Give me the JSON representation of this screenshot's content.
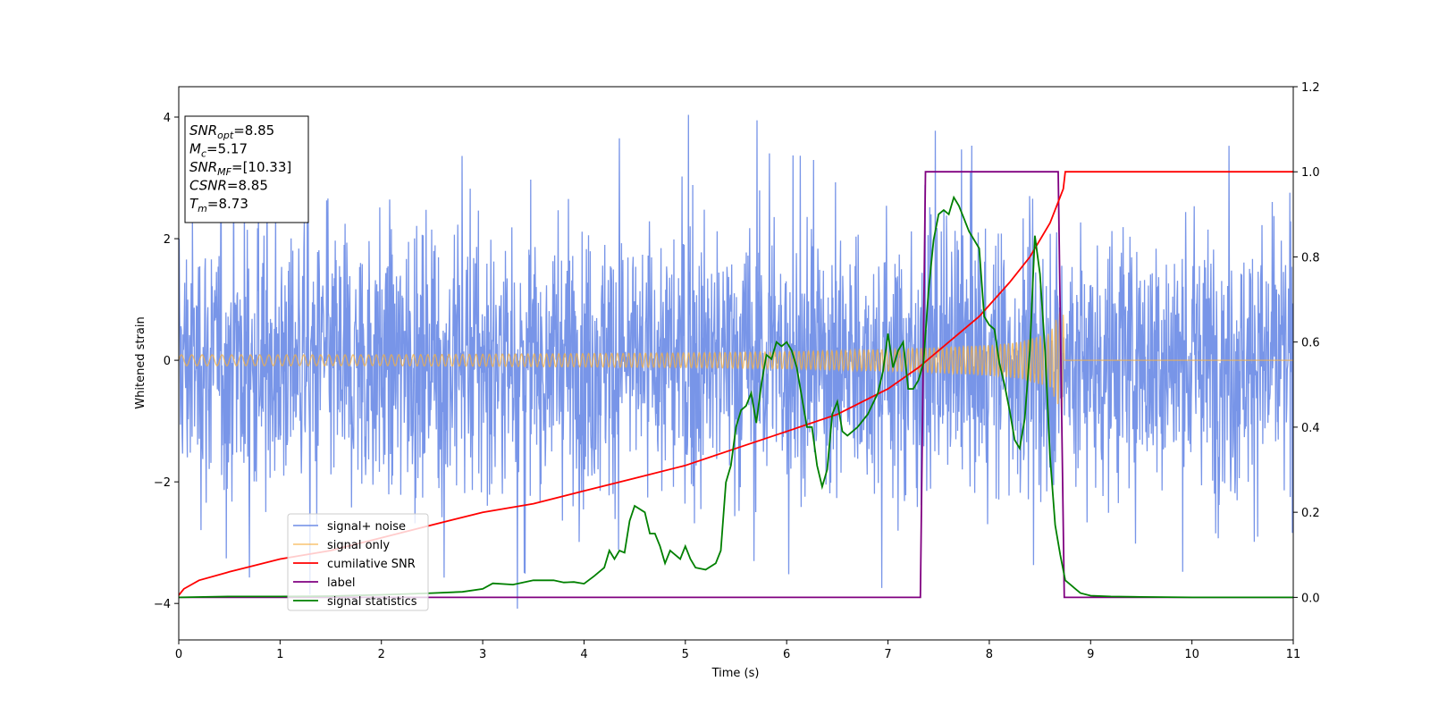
{
  "chart_data": {
    "type": "line",
    "xlabel": "Time (s)",
    "ylabel": "Whitened strain",
    "xlim": [
      0,
      11
    ],
    "ylim_left": [
      -4.6,
      4.5
    ],
    "ylim_right": [
      -0.1,
      1.2
    ],
    "x_ticks": [
      0,
      1,
      2,
      3,
      4,
      5,
      6,
      7,
      8,
      9,
      10,
      11
    ],
    "y_ticks_left": [
      -4,
      -2,
      0,
      2,
      4
    ],
    "y_ticks_right": [
      0.0,
      0.2,
      0.4,
      0.6,
      0.8,
      1.0,
      1.2
    ],
    "legend_position": "lower-left",
    "annotation_box": {
      "lines": [
        {
          "base": "SNR",
          "sub": "opt",
          "value": "=8.85"
        },
        {
          "base": "M",
          "sub": "c",
          "value": "=5.17"
        },
        {
          "base": "SNR",
          "sub": "MF",
          "value": "=[10.33]"
        },
        {
          "base": "CSNR",
          "sub": "",
          "value": "=8.85"
        },
        {
          "base": "T",
          "sub": "m",
          "value": "=8.73"
        }
      ]
    },
    "series": [
      {
        "name": "signal+ noise",
        "color": "#6d8ce6",
        "axis": "left",
        "description_values": {
          "typical_amplitude": 1.5,
          "peak_amplitude": 4.1,
          "min": -4.15,
          "x_range": [
            0,
            11
          ]
        }
      },
      {
        "name": "signal only",
        "color": "#f5b041",
        "axis": "left",
        "envelope": {
          "x": [
            0,
            2,
            4,
            5,
            6,
            7,
            7.5,
            8,
            8.3,
            8.6,
            8.73,
            8.74,
            11
          ],
          "amp": [
            0.09,
            0.09,
            0.11,
            0.12,
            0.14,
            0.18,
            0.21,
            0.25,
            0.3,
            0.45,
            0.95,
            0.0,
            0.0
          ]
        }
      },
      {
        "name": "cumilative SNR",
        "color": "#ff0000",
        "axis": "right",
        "x": [
          0,
          0.05,
          0.2,
          0.5,
          1,
          1.5,
          2,
          2.5,
          3,
          3.5,
          4,
          4.5,
          5,
          5.5,
          6,
          6.5,
          7,
          7.3,
          7.6,
          7.9,
          8.2,
          8.4,
          8.6,
          8.73,
          8.75,
          11
        ],
        "y": [
          0.005,
          0.02,
          0.04,
          0.06,
          0.09,
          0.11,
          0.14,
          0.17,
          0.2,
          0.22,
          0.25,
          0.28,
          0.31,
          0.35,
          0.39,
          0.43,
          0.49,
          0.54,
          0.6,
          0.66,
          0.74,
          0.8,
          0.88,
          0.96,
          1.0,
          1.0
        ]
      },
      {
        "name": "label",
        "color": "#800080",
        "axis": "right",
        "x": [
          0,
          7.32,
          7.37,
          8.68,
          8.74,
          11
        ],
        "y": [
          0,
          0,
          1,
          1,
          0,
          0
        ]
      },
      {
        "name": "signal statistics",
        "color": "#008000",
        "axis": "right",
        "x": [
          0,
          0.5,
          1,
          1.5,
          2,
          2.5,
          2.8,
          3.0,
          3.1,
          3.3,
          3.5,
          3.7,
          3.8,
          3.9,
          4.0,
          4.1,
          4.2,
          4.25,
          4.3,
          4.35,
          4.4,
          4.45,
          4.5,
          4.6,
          4.65,
          4.7,
          4.75,
          4.8,
          4.85,
          4.9,
          4.95,
          5.0,
          5.05,
          5.1,
          5.2,
          5.3,
          5.35,
          5.4,
          5.45,
          5.5,
          5.55,
          5.6,
          5.65,
          5.7,
          5.75,
          5.8,
          5.85,
          5.9,
          5.95,
          6.0,
          6.05,
          6.1,
          6.15,
          6.2,
          6.25,
          6.3,
          6.35,
          6.4,
          6.45,
          6.5,
          6.55,
          6.6,
          6.7,
          6.8,
          6.9,
          6.95,
          7.0,
          7.05,
          7.1,
          7.15,
          7.2,
          7.25,
          7.3,
          7.35,
          7.4,
          7.45,
          7.5,
          7.55,
          7.6,
          7.65,
          7.7,
          7.75,
          7.8,
          7.85,
          7.9,
          7.95,
          8.0,
          8.05,
          8.1,
          8.15,
          8.2,
          8.25,
          8.3,
          8.35,
          8.4,
          8.45,
          8.5,
          8.55,
          8.6,
          8.65,
          8.7,
          8.75,
          8.8,
          8.85,
          8.9,
          9.0,
          9.2,
          9.5,
          10,
          11
        ],
        "y": [
          0.0,
          0.002,
          0.002,
          0.003,
          0.006,
          0.01,
          0.013,
          0.02,
          0.033,
          0.03,
          0.04,
          0.04,
          0.035,
          0.036,
          0.032,
          0.05,
          0.07,
          0.11,
          0.09,
          0.11,
          0.105,
          0.18,
          0.215,
          0.2,
          0.15,
          0.15,
          0.12,
          0.08,
          0.11,
          0.1,
          0.09,
          0.12,
          0.09,
          0.07,
          0.065,
          0.08,
          0.11,
          0.27,
          0.31,
          0.4,
          0.44,
          0.45,
          0.48,
          0.41,
          0.5,
          0.57,
          0.56,
          0.6,
          0.59,
          0.6,
          0.58,
          0.54,
          0.47,
          0.4,
          0.4,
          0.31,
          0.26,
          0.3,
          0.43,
          0.46,
          0.39,
          0.38,
          0.4,
          0.43,
          0.48,
          0.53,
          0.62,
          0.54,
          0.58,
          0.6,
          0.49,
          0.49,
          0.51,
          0.55,
          0.72,
          0.84,
          0.9,
          0.91,
          0.9,
          0.94,
          0.92,
          0.89,
          0.86,
          0.84,
          0.82,
          0.66,
          0.64,
          0.63,
          0.55,
          0.5,
          0.44,
          0.37,
          0.35,
          0.42,
          0.58,
          0.85,
          0.76,
          0.58,
          0.33,
          0.17,
          0.1,
          0.04,
          0.03,
          0.02,
          0.01,
          0.004,
          0.002,
          0.001,
          0.0,
          0.0
        ]
      }
    ]
  }
}
